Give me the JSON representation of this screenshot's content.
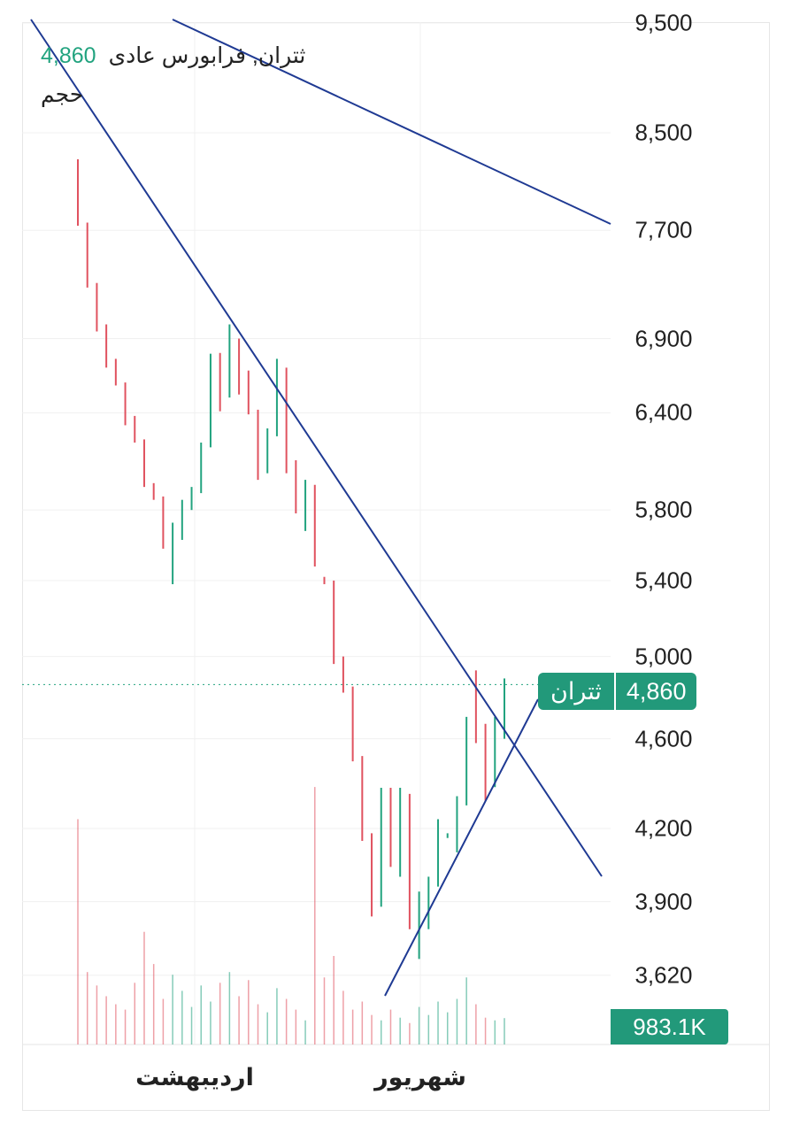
{
  "legend": {
    "symbol_title": "ثتران, فرابورس عادی",
    "last_value": "4,860",
    "volume_title": "حجم"
  },
  "price_label": {
    "symbol": "ثتران",
    "value": "4,860"
  },
  "volume_label": "983.1K",
  "colors": {
    "up": "#22a37f",
    "down": "#e0525f",
    "trendline": "#1f3a93",
    "badge": "#22997a"
  },
  "chart_data": {
    "type": "ohlc",
    "price_scale": "log",
    "ylim": [
      3550,
      9600
    ],
    "y_ticks": [
      "9,500",
      "8,500",
      "7,700",
      "6,900",
      "6,400",
      "5,800",
      "5,400",
      "5,000",
      "4,600",
      "4,200",
      "3,900",
      "3,620"
    ],
    "y_tick_values": [
      9500,
      8500,
      7700,
      6900,
      6400,
      5800,
      5400,
      5000,
      4600,
      4200,
      3900,
      3620
    ],
    "x_ticks": [
      "اردیبهشت",
      "شهریور"
    ],
    "last_price": 4860,
    "last_volume": "983.1K",
    "grid": true,
    "bars": [
      [
        8275,
        8275,
        7736,
        7760
      ],
      [
        7760,
        7760,
        7266,
        7300
      ],
      [
        7100,
        7300,
        6950,
        7000
      ],
      [
        7000,
        7000,
        6700,
        6720
      ],
      [
        6720,
        6760,
        6580,
        6600
      ],
      [
        6600,
        6600,
        6320,
        6350
      ],
      [
        6350,
        6380,
        6210,
        6230
      ],
      [
        6230,
        6230,
        5937,
        5960
      ],
      [
        5960,
        5960,
        5860,
        5880
      ],
      [
        5880,
        5880,
        5577,
        5600
      ],
      [
        5600,
        5726,
        5380,
        5700
      ],
      [
        5700,
        5860,
        5627,
        5820
      ],
      [
        5820,
        5937,
        5800,
        5920
      ],
      [
        5920,
        6210,
        5900,
        6200
      ],
      [
        6200,
        6795,
        6180,
        6700
      ],
      [
        6700,
        6800,
        6410,
        6500
      ],
      [
        6500,
        7000,
        6500,
        6900
      ],
      [
        6900,
        6900,
        6520,
        6550
      ],
      [
        6550,
        6680,
        6390,
        6420
      ],
      [
        6420,
        6420,
        5980,
        6050
      ],
      [
        6050,
        6300,
        6020,
        6250
      ],
      [
        6250,
        6760,
        6250,
        6700
      ],
      [
        6700,
        6700,
        6020,
        6100
      ],
      [
        6100,
        6100,
        5780,
        5800
      ],
      [
        5800,
        5980,
        5678,
        5950
      ],
      [
        5950,
        5950,
        5477,
        5500
      ],
      [
        5420,
        5420,
        5380,
        5400
      ],
      [
        5400,
        5400,
        4962,
        5000
      ],
      [
        5000,
        5000,
        4820,
        4850
      ],
      [
        4850,
        4850,
        4496,
        4520
      ],
      [
        4520,
        4520,
        4148,
        4180
      ],
      [
        4180,
        4180,
        3842,
        3880
      ],
      [
        3880,
        4377,
        3880,
        4300
      ],
      [
        4300,
        4377,
        4040,
        4100
      ],
      [
        4100,
        4377,
        4000,
        4350
      ],
      [
        4350,
        4350,
        3793,
        3850
      ],
      [
        3850,
        3940,
        3680,
        3900
      ],
      [
        3900,
        4000,
        3793,
        3960
      ],
      [
        3960,
        4240,
        3960,
        4200
      ],
      [
        4170,
        4180,
        4160,
        4170
      ],
      [
        4170,
        4340,
        4100,
        4300
      ],
      [
        4300,
        4703,
        4300,
        4650
      ],
      [
        4650,
        4930,
        4580,
        4620
      ],
      [
        4620,
        4670,
        4320,
        4400
      ],
      [
        4400,
        4703,
        4380,
        4680
      ],
      [
        4680,
        4890,
        4600,
        4860
      ]
    ],
    "volume_k": [
      8400,
      2700,
      2200,
      1800,
      1500,
      1300,
      2300,
      4200,
      3000,
      1700,
      2600,
      2000,
      1400,
      2200,
      1600,
      2300,
      2700,
      1800,
      2400,
      1500,
      1200,
      2100,
      1700,
      1300,
      900,
      9600,
      2500,
      3300,
      2000,
      1300,
      1600,
      1100,
      900,
      1300,
      1000,
      800,
      1400,
      1100,
      1600,
      1200,
      1700,
      2500,
      1500,
      1000,
      900,
      983.1
    ]
  }
}
